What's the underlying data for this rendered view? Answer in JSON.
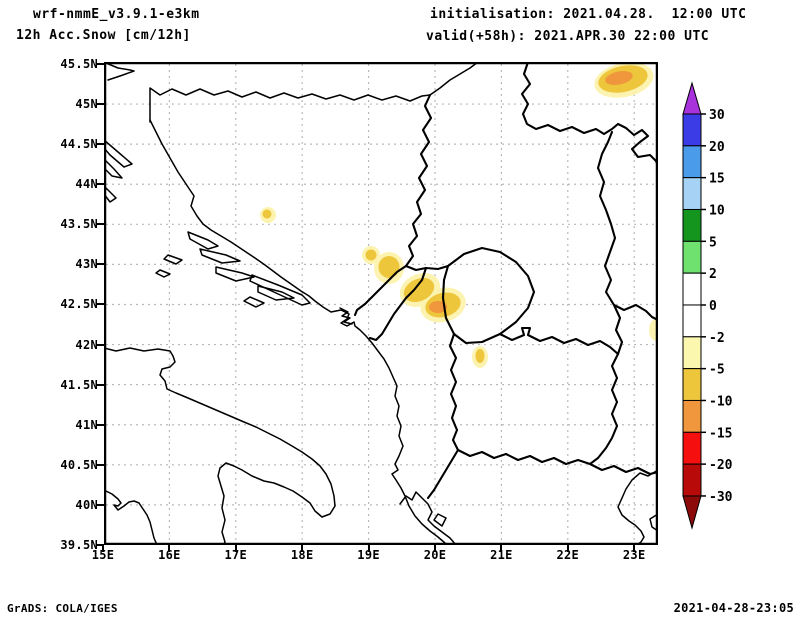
{
  "header": {
    "model": "wrf-nmmE_v3.9.1-e3km",
    "variable": "12h Acc.Snow [cm/12h]",
    "initialisation": "initialisation: 2021.04.28.  12:00 UTC",
    "valid": "valid(+58h): 2021.APR.30 22:00 UTC"
  },
  "footer": {
    "left": "GrADS: COLA/IGES",
    "right": "2021-04-28-23:05"
  },
  "map": {
    "lat_ticks": [
      "45.5N",
      "45N",
      "44.5N",
      "44N",
      "43.5N",
      "43N",
      "42.5N",
      "42N",
      "41.5N",
      "41N",
      "40.5N",
      "40N",
      "39.5N"
    ],
    "lon_ticks": [
      "15E",
      "16E",
      "17E",
      "18E",
      "19E",
      "20E",
      "21E",
      "22E",
      "23E"
    ]
  },
  "colorbar": {
    "tick_labels": [
      "30",
      "20",
      "15",
      "10",
      "5",
      "2",
      "0",
      "-2",
      "-5",
      "-10",
      "-15",
      "-20",
      "-30"
    ],
    "segment_colors": [
      "#3C3CE6",
      "#4B9BEB",
      "#A5D2F5",
      "#14961E",
      "#6EE16E",
      "#FFFFFF",
      "#FFFFFF",
      "#FCF7AE",
      "#EDC63C",
      "#F0963C",
      "#F50F0F",
      "#B90A0A"
    ],
    "over_color": "#A832DC",
    "under_color": "#8C0A0A"
  },
  "colors": {
    "snow_pale": "#FCF3B0",
    "snow_gold": "#EDC63C",
    "snow_orange": "#F0963C",
    "grid": "#B9B9B9",
    "line": "#000000"
  },
  "chart_data": {
    "type": "map-contour",
    "title": "12h Acc.Snow [cm/12h]",
    "model": "wrf-nmmE_v3.9.1-e3km",
    "init_time": "2021.04.28. 12:00 UTC",
    "valid_time": "2021.APR.30 22:00 UTC (+58h)",
    "domain": {
      "lon_range": [
        15.0,
        23.5
      ],
      "lat_range": [
        39.5,
        45.5
      ]
    },
    "lat_gridlines_every_deg": 0.5,
    "lon_gridlines_every_deg": 1.0,
    "colorbar_levels": [
      -30,
      -20,
      -15,
      -10,
      -5,
      -2,
      0,
      2,
      5,
      10,
      15,
      20,
      30
    ],
    "snow_areas": [
      {
        "lon": 22.8,
        "lat": 45.28,
        "band": "-5 to -15",
        "note": "largest patch, top-right, orange core"
      },
      {
        "lon": 17.45,
        "lat": 43.6,
        "band": "-5 to -10",
        "note": "small dot"
      },
      {
        "lon": 18.95,
        "lat": 43.1,
        "band": "-5 to -10",
        "note": "small dot"
      },
      {
        "lon": 19.25,
        "lat": 42.95,
        "band": "-5 to -10",
        "note": "round blob"
      },
      {
        "lon": 19.95,
        "lat": 42.6,
        "band": "-5 to -15",
        "note": "large central blob with orange core on border junction"
      },
      {
        "lon": 20.6,
        "lat": 41.85,
        "band": "-5 to -10",
        "note": "small dot"
      },
      {
        "lon": 23.2,
        "lat": 42.15,
        "band": "-2 to -5",
        "note": "faint smudge at right frame edge"
      }
    ]
  }
}
